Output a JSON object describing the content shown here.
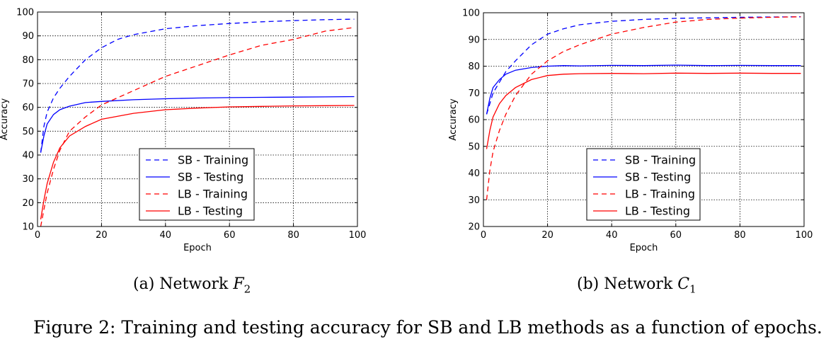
{
  "figure_caption": "Figure 2: Training and testing accuracy for SB and LB methods as a function of epochs.",
  "chart_data": [
    {
      "type": "line",
      "subcaption": {
        "label": "(a) Network",
        "symbol": "F",
        "subscript": "2"
      },
      "xlabel": "Epoch",
      "ylabel": "Accuracy",
      "xlim": [
        0,
        100
      ],
      "ylim": [
        10,
        100
      ],
      "xticks": [
        0,
        20,
        40,
        60,
        80,
        100
      ],
      "yticks": [
        10,
        20,
        30,
        40,
        50,
        60,
        70,
        80,
        90,
        100
      ],
      "grid": true,
      "legend_position": "bottom-center",
      "series": [
        {
          "name": "SB - Training",
          "color": "#0000ff",
          "dash": "dashed",
          "x": [
            1,
            2,
            3,
            5,
            7,
            10,
            15,
            20,
            25,
            30,
            40,
            50,
            60,
            70,
            80,
            90,
            99
          ],
          "y": [
            41,
            52,
            58,
            64,
            68,
            73,
            80,
            85,
            88.5,
            90.5,
            93,
            94.3,
            95.2,
            95.9,
            96.4,
            96.8,
            97
          ]
        },
        {
          "name": "SB - Testing",
          "color": "#0000ff",
          "dash": "solid",
          "x": [
            1,
            2,
            3,
            5,
            7,
            10,
            15,
            20,
            30,
            40,
            50,
            60,
            70,
            80,
            90,
            99
          ],
          "y": [
            41,
            48,
            53,
            57,
            59,
            60.5,
            62,
            62.5,
            63.2,
            63.6,
            63.9,
            64.1,
            64.2,
            64.3,
            64.4,
            64.5
          ]
        },
        {
          "name": "LB - Training",
          "color": "#ff0000",
          "dash": "dashed",
          "x": [
            1,
            2,
            3,
            5,
            7,
            10,
            15,
            20,
            30,
            40,
            50,
            60,
            70,
            80,
            90,
            99
          ],
          "y": [
            10,
            17,
            24,
            34,
            42,
            50,
            56,
            61,
            67,
            73,
            77.5,
            82,
            86,
            88.5,
            92,
            93.5
          ]
        },
        {
          "name": "LB - Testing",
          "color": "#ff0000",
          "dash": "solid",
          "x": [
            1,
            2,
            3,
            5,
            7,
            10,
            15,
            20,
            30,
            40,
            50,
            60,
            70,
            80,
            90,
            99
          ],
          "y": [
            13,
            21,
            28,
            37,
            43,
            48,
            52,
            55,
            57.5,
            59,
            59.7,
            60.2,
            60.4,
            60.6,
            60.7,
            60.8
          ]
        }
      ]
    },
    {
      "type": "line",
      "subcaption": {
        "label": "(b) Network",
        "symbol": "C",
        "subscript": "1"
      },
      "xlabel": "Epoch",
      "ylabel": "Accuracy",
      "xlim": [
        0,
        100
      ],
      "ylim": [
        20,
        100
      ],
      "xticks": [
        0,
        20,
        40,
        60,
        80,
        100
      ],
      "yticks": [
        20,
        30,
        40,
        50,
        60,
        70,
        80,
        90,
        100
      ],
      "grid": true,
      "legend_position": "bottom-center",
      "series": [
        {
          "name": "SB - Training",
          "color": "#0000ff",
          "dash": "dashed",
          "x": [
            1,
            2,
            3,
            5,
            7,
            10,
            15,
            20,
            25,
            30,
            40,
            50,
            60,
            70,
            80,
            90,
            99
          ],
          "y": [
            62,
            66,
            70,
            74,
            78,
            82,
            88,
            92,
            94,
            95.5,
            96.8,
            97.5,
            97.9,
            98.1,
            98.3,
            98.4,
            98.5
          ]
        },
        {
          "name": "SB - Testing",
          "color": "#0000ff",
          "dash": "solid",
          "x": [
            1,
            2,
            3,
            5,
            7,
            10,
            15,
            20,
            25,
            30,
            40,
            50,
            60,
            70,
            80,
            90,
            99
          ],
          "y": [
            62,
            68,
            72,
            75,
            77,
            78.5,
            79.5,
            80,
            80.2,
            80.1,
            80.3,
            80.2,
            80.4,
            80.2,
            80.3,
            80.2,
            80.2
          ]
        },
        {
          "name": "LB - Training",
          "color": "#ff0000",
          "dash": "dashed",
          "x": [
            1,
            2,
            3,
            5,
            7,
            10,
            15,
            20,
            25,
            30,
            40,
            50,
            60,
            70,
            80,
            90,
            99
          ],
          "y": [
            30,
            41,
            48,
            56,
            62,
            69,
            77,
            82,
            85.5,
            88,
            92,
            94.5,
            96.5,
            97.5,
            98,
            98.3,
            98.5
          ]
        },
        {
          "name": "LB - Testing",
          "color": "#ff0000",
          "dash": "solid",
          "x": [
            1,
            2,
            3,
            5,
            7,
            10,
            15,
            20,
            25,
            30,
            40,
            50,
            60,
            70,
            80,
            90,
            99
          ],
          "y": [
            49,
            56,
            61,
            66,
            69,
            72,
            75,
            76.5,
            77,
            77.2,
            77.3,
            77.2,
            77.4,
            77.3,
            77.4,
            77.3,
            77.3
          ]
        }
      ]
    }
  ]
}
